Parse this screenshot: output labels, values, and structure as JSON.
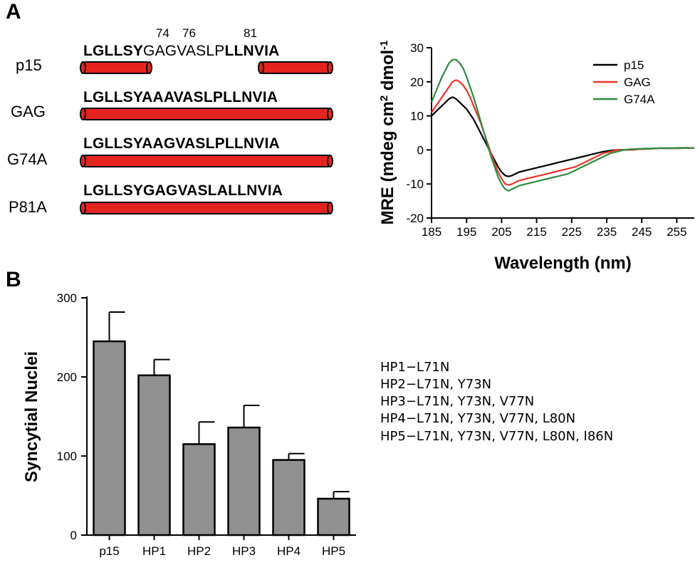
{
  "panels": {
    "a": "A",
    "b": "B"
  },
  "residue_numbers": [
    "74",
    "76",
    "81"
  ],
  "sequences": [
    {
      "name": "p15",
      "segments": [
        {
          "text": "LGLLSY",
          "bold": true
        },
        {
          "text": "GAGVASLP",
          "bold": false
        },
        {
          "text": "LLNVIA",
          "bold": true
        }
      ]
    },
    {
      "name": "GAG",
      "segments": [
        {
          "text": "LGLLSYAAAVASLPLLNVIA",
          "bold": true
        }
      ]
    },
    {
      "name": "G74A",
      "segments": [
        {
          "text": "LGLLSYAAGVASLPLLNVIA",
          "bold": true
        }
      ]
    },
    {
      "name": "P81A",
      "segments": [
        {
          "text": "LGLLSYGAGVASLALLNVIA",
          "bold": true
        }
      ]
    }
  ],
  "helix_color": "#e52420",
  "chart_data": [
    {
      "type": "line",
      "xlabel": "Wavelength (nm)",
      "ylabel_parts": [
        "MRE (mdeg cm",
        "2",
        " dmol",
        "-1"
      ],
      "xlim": [
        185,
        260
      ],
      "ylim": [
        -20,
        30
      ],
      "xticks": [
        185,
        195,
        205,
        215,
        225,
        235,
        245,
        255
      ],
      "yticks": [
        -20,
        -10,
        0,
        10,
        20,
        30
      ],
      "legend_position": "top-right",
      "series": [
        {
          "name": "p15",
          "color": "#000000",
          "x": [
            185,
            186,
            187,
            188,
            189,
            190,
            191,
            192,
            193,
            194,
            195,
            196,
            197,
            198,
            199,
            200,
            201,
            202,
            203,
            204,
            205,
            206,
            207,
            208,
            209,
            210,
            212,
            214,
            216,
            218,
            220,
            222,
            224,
            226,
            228,
            230,
            232,
            234,
            236,
            238,
            240,
            242,
            244,
            246,
            248,
            250,
            252,
            254,
            256,
            258,
            260
          ],
          "y": [
            10,
            11,
            12,
            13,
            14,
            15,
            15.5,
            15,
            14,
            13,
            12,
            10.5,
            9,
            7,
            5,
            3,
            1,
            -1,
            -3,
            -5,
            -6.5,
            -7.5,
            -7.8,
            -7.5,
            -7,
            -6.5,
            -6,
            -5.5,
            -5,
            -4.5,
            -4,
            -3.5,
            -3,
            -2.5,
            -2,
            -1.5,
            -1,
            -0.5,
            -0.2,
            0,
            0,
            0,
            0.2,
            0.3,
            0.4,
            0.5,
            0.5,
            0.5,
            0.5,
            0.6,
            0.5
          ]
        },
        {
          "name": "GAG",
          "color": "#e8352a",
          "x": [
            185,
            186,
            187,
            188,
            189,
            190,
            191,
            192,
            193,
            194,
            195,
            196,
            197,
            198,
            199,
            200,
            201,
            202,
            203,
            204,
            205,
            206,
            207,
            208,
            209,
            210,
            212,
            214,
            216,
            218,
            220,
            222,
            224,
            226,
            228,
            230,
            232,
            234,
            236,
            238,
            240,
            242,
            244,
            246,
            248,
            250,
            252,
            254,
            256,
            258,
            260
          ],
          "y": [
            11,
            12.5,
            14,
            15.5,
            17,
            18.5,
            20,
            20.5,
            20,
            19,
            17.5,
            15.5,
            13,
            10.5,
            8,
            5,
            2,
            -1,
            -4,
            -6.5,
            -8.5,
            -10,
            -10.3,
            -10,
            -9.5,
            -9,
            -8.5,
            -8,
            -7.5,
            -7,
            -6.5,
            -6,
            -5.5,
            -5,
            -4,
            -3,
            -2,
            -1,
            -0.5,
            0,
            0,
            0,
            0.2,
            0.3,
            0.4,
            0.5,
            0.5,
            0.5,
            0.5,
            0.6,
            0.5
          ]
        },
        {
          "name": "G74A",
          "color": "#2e8b3e",
          "x": [
            185,
            186,
            187,
            188,
            189,
            190,
            191,
            192,
            193,
            194,
            195,
            196,
            197,
            198,
            199,
            200,
            201,
            202,
            203,
            204,
            205,
            206,
            207,
            208,
            209,
            210,
            212,
            214,
            216,
            218,
            220,
            222,
            224,
            226,
            228,
            230,
            232,
            234,
            236,
            238,
            240,
            242,
            244,
            246,
            248,
            250,
            252,
            254,
            256,
            258,
            260
          ],
          "y": [
            14,
            16.5,
            19,
            21.5,
            23.5,
            25.5,
            26.5,
            26.5,
            25.5,
            24,
            21.5,
            18.5,
            15.5,
            12,
            8.5,
            5,
            1.5,
            -2,
            -5,
            -8,
            -10,
            -11.5,
            -12,
            -11.5,
            -11,
            -10.5,
            -10,
            -9.5,
            -9,
            -8.5,
            -8,
            -7.5,
            -7,
            -6,
            -5,
            -4,
            -3,
            -2,
            -1,
            -0.5,
            0,
            0.2,
            0.3,
            0.4,
            0.4,
            0.5,
            0.5,
            0.5,
            0.6,
            0.6,
            0.5
          ]
        }
      ]
    },
    {
      "type": "bar",
      "ylabel": "Syncytial Nuclei",
      "ylim": [
        0,
        300
      ],
      "yticks": [
        0,
        100,
        200,
        300
      ],
      "categories": [
        "p15",
        "HP1",
        "HP2",
        "HP3",
        "HP4",
        "HP5"
      ],
      "values": [
        245,
        202,
        115,
        136,
        95,
        46
      ],
      "errors": [
        37,
        20,
        28,
        28,
        8,
        9
      ],
      "bar_color": "#909090"
    }
  ],
  "mutant_key": [
    "HP1−L71N",
    "HP2−L71N, Y73N",
    "HP3−L71N, Y73N, V77N",
    "HP4−L71N, Y73N, V77N, L80N",
    "HP5−L71N, Y73N, V77N, L80N, I86N"
  ]
}
